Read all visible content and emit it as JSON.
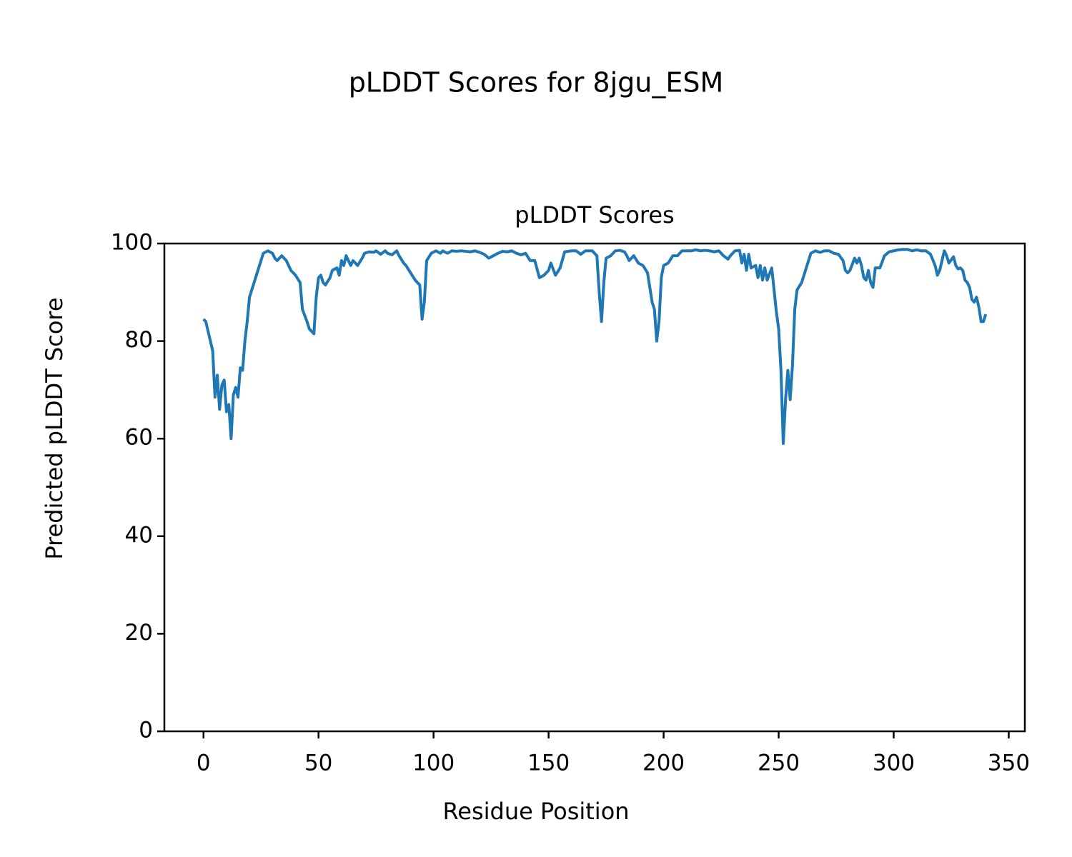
{
  "chart_data": {
    "type": "line",
    "suptitle": "pLDDT Scores for 8jgu_ESM",
    "title": "pLDDT Scores",
    "x_label": "Residue Position",
    "y_label": "Predicted pLDDT Score",
    "xlim": [
      -17,
      357
    ],
    "ylim": [
      0,
      100
    ],
    "xticks": [
      0,
      50,
      100,
      150,
      200,
      250,
      300,
      350
    ],
    "yticks": [
      0,
      20,
      40,
      60,
      80,
      100
    ],
    "grid": false,
    "series": [
      {
        "name": "pLDDT",
        "color": "#1f77b4",
        "x": [
          0,
          1,
          2,
          3,
          4,
          5,
          6,
          7,
          8,
          9,
          10,
          11,
          12,
          13,
          14,
          15,
          16,
          17,
          18,
          19,
          20,
          22,
          24,
          26,
          28,
          30,
          31,
          32,
          34,
          36,
          38,
          40,
          42,
          43,
          45,
          46,
          48,
          49,
          50,
          51,
          52,
          53,
          55,
          56,
          58,
          59,
          60,
          61,
          62,
          64,
          65,
          67,
          69,
          70,
          72,
          74,
          75,
          77,
          79,
          80,
          82,
          84,
          85,
          87,
          88,
          90,
          92,
          94,
          95,
          96,
          97,
          99,
          101,
          103,
          104,
          106,
          108,
          110,
          112,
          114,
          116,
          118,
          120,
          122,
          124,
          126,
          128,
          130,
          132,
          134,
          136,
          138,
          140,
          142,
          144,
          146,
          148,
          150,
          151,
          153,
          155,
          157,
          160,
          162,
          164,
          166,
          169,
          171,
          172,
          173,
          174,
          175,
          177,
          179,
          181,
          183,
          184,
          185,
          187,
          189,
          191,
          193,
          195,
          196,
          197,
          198,
          199,
          200,
          202,
          204,
          206,
          208,
          210,
          212,
          214,
          216,
          218,
          220,
          222,
          224,
          226,
          228,
          229,
          231,
          233,
          234,
          235,
          236,
          237,
          238,
          240,
          241,
          242,
          243,
          244,
          245,
          247,
          249,
          250,
          251,
          252,
          253,
          254,
          255,
          256,
          257,
          258,
          260,
          262,
          264,
          266,
          268,
          270,
          272,
          274,
          276,
          278,
          279,
          280,
          281,
          283,
          284,
          285,
          286,
          287,
          288,
          289,
          290,
          291,
          292,
          294,
          296,
          298,
          300,
          302,
          304,
          306,
          308,
          310,
          312,
          314,
          316,
          318,
          319,
          320,
          322,
          323,
          324,
          326,
          327,
          328,
          329,
          330,
          331,
          332,
          333,
          334,
          335,
          336,
          337,
          338,
          339,
          340
        ],
        "values": [
          84.5,
          84,
          82,
          80,
          78,
          68.5,
          73,
          66,
          71,
          72,
          65.5,
          67,
          60,
          69,
          70.5,
          68.5,
          74.5,
          74,
          80,
          84,
          89,
          92,
          95,
          98,
          98.5,
          98,
          97,
          96.5,
          97.5,
          96.5,
          94.5,
          93.5,
          92,
          86.5,
          84,
          82.5,
          81.5,
          89,
          93,
          93.5,
          92,
          91.5,
          93,
          94.5,
          95,
          93.5,
          96.5,
          95.5,
          97.5,
          95.5,
          96.5,
          95.5,
          97,
          98,
          98.3,
          98.2,
          98.5,
          97.8,
          98.5,
          98,
          97.7,
          98.5,
          97.5,
          96,
          95.5,
          94,
          92.5,
          91.5,
          84.5,
          88,
          96.5,
          98,
          98.5,
          98,
          98.5,
          98,
          98.5,
          98.4,
          98.5,
          98.4,
          98.3,
          98.5,
          98.2,
          97.8,
          97,
          97.5,
          98,
          98.4,
          98.3,
          98.5,
          98,
          97.7,
          98,
          96.5,
          96.5,
          93,
          93.5,
          94.5,
          96,
          93.5,
          95,
          98.3,
          98.5,
          98.5,
          97.8,
          98.5,
          98.5,
          97.5,
          90,
          84,
          92,
          97,
          97.5,
          98.5,
          98.6,
          98.3,
          97.5,
          96.5,
          97.5,
          96,
          95.5,
          94,
          88,
          86.5,
          80,
          84,
          93,
          95.5,
          96,
          97.5,
          97.5,
          98.5,
          98.5,
          98.5,
          98.7,
          98.5,
          98.6,
          98.5,
          98.3,
          98.5,
          97.5,
          96.8,
          97.5,
          98.5,
          98.6,
          96,
          97.8,
          94.5,
          97.8,
          95,
          95.5,
          93,
          95.5,
          92.5,
          95,
          92.5,
          95,
          86,
          82.5,
          74,
          59,
          68,
          74,
          68,
          75,
          86.5,
          90.5,
          92,
          95,
          98,
          98.5,
          98.2,
          98.5,
          98.5,
          98,
          97.8,
          96.5,
          94.5,
          94,
          94.5,
          97,
          96,
          97,
          95.5,
          93,
          92.5,
          94.5,
          92,
          91,
          95,
          95,
          97.5,
          98.3,
          98.5,
          98.7,
          98.8,
          98.8,
          98.5,
          98.7,
          98.5,
          98.5,
          97.8,
          95.5,
          93.5,
          94.5,
          98.5,
          97.5,
          96,
          97.3,
          95.5,
          94.8,
          95,
          94.5,
          92.5,
          92,
          91,
          88.5,
          88,
          89,
          87,
          84,
          84,
          85.5
        ]
      }
    ]
  }
}
